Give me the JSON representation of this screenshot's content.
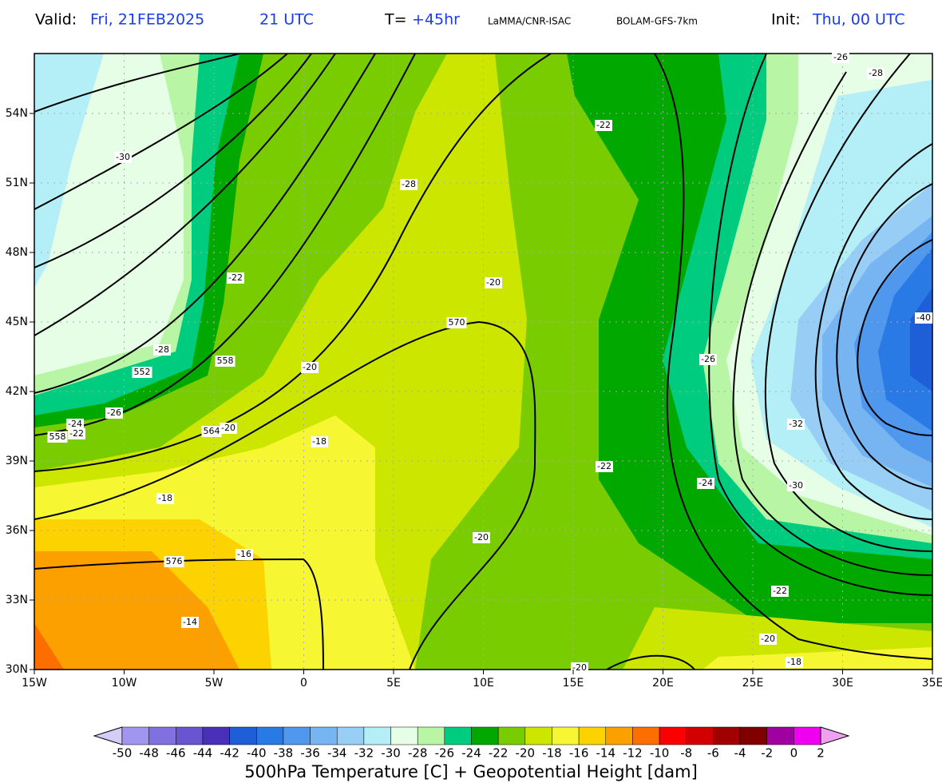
{
  "header": {
    "valid_label": "Valid:",
    "valid_date": "Fri, 21FEB2025",
    "valid_hour": "21 UTC",
    "lead_label": "T=",
    "lead_time": "+45hr",
    "institute": "LaMMA/CNR-ISAC",
    "model": "BOLAM-GFS-7km",
    "init_label": "Init:",
    "init_time": "Thu, 00 UTC"
  },
  "map": {
    "lon_ticks": [
      {
        "value": -15,
        "label": "15W"
      },
      {
        "value": -10,
        "label": "10W"
      },
      {
        "value": -5,
        "label": "5W"
      },
      0,
      {
        "value": 5,
        "label": "5E"
      },
      {
        "value": 10,
        "label": "10E"
      },
      {
        "value": 15,
        "label": "15E"
      },
      {
        "value": 20,
        "label": "20E"
      },
      {
        "value": 25,
        "label": "25E"
      },
      {
        "value": 30,
        "label": "30E"
      },
      {
        "value": 35,
        "label": "35E"
      }
    ],
    "lat_ticks": [
      {
        "value": 30,
        "label": "30N"
      },
      {
        "value": 33,
        "label": "33N"
      },
      {
        "value": 36,
        "label": "36N"
      },
      {
        "value": 39,
        "label": "39N"
      },
      {
        "value": 42,
        "label": "42N"
      },
      {
        "value": 45,
        "label": "45N"
      },
      {
        "value": 48,
        "label": "48N"
      },
      {
        "value": 51,
        "label": "51N"
      },
      {
        "value": 54,
        "label": "54N"
      }
    ],
    "contour_labels": [
      -26,
      -28,
      -22,
      -30,
      -28,
      -22,
      -20,
      570,
      -40,
      -28,
      552,
      558,
      -20,
      -26,
      -26,
      -24,
      558,
      -22,
      564,
      -20,
      -18,
      -32,
      -22,
      -24,
      -30,
      -18,
      -20,
      -16,
      576,
      -22,
      -14,
      -20,
      -18,
      -20
    ]
  },
  "colorbar": {
    "levels": [
      -50,
      -48,
      -46,
      -44,
      -42,
      -40,
      -38,
      -36,
      -34,
      -32,
      -30,
      -28,
      -26,
      -24,
      -22,
      -20,
      -18,
      -16,
      -14,
      -12,
      -10,
      -8,
      -6,
      -4,
      -2,
      0,
      2
    ],
    "colors": [
      "#d4cdfa",
      "#a096f0",
      "#8070e0",
      "#6a55d0",
      "#4a30b8",
      "#1e5ed6",
      "#2a7ae6",
      "#4f98ee",
      "#76b4f2",
      "#98cef6",
      "#b4eef6",
      "#e6fde6",
      "#b8f6a6",
      "#00cc80",
      "#00a800",
      "#78cc00",
      "#cce600",
      "#f6f632",
      "#fcd200",
      "#fca000",
      "#fc6e00",
      "#fa0000",
      "#d20000",
      "#a00000",
      "#800000",
      "#a000a0",
      "#f000f0",
      "#f0a0f0"
    ],
    "title": "500hPa Temperature [C] + Geopotential Height [dam]"
  }
}
